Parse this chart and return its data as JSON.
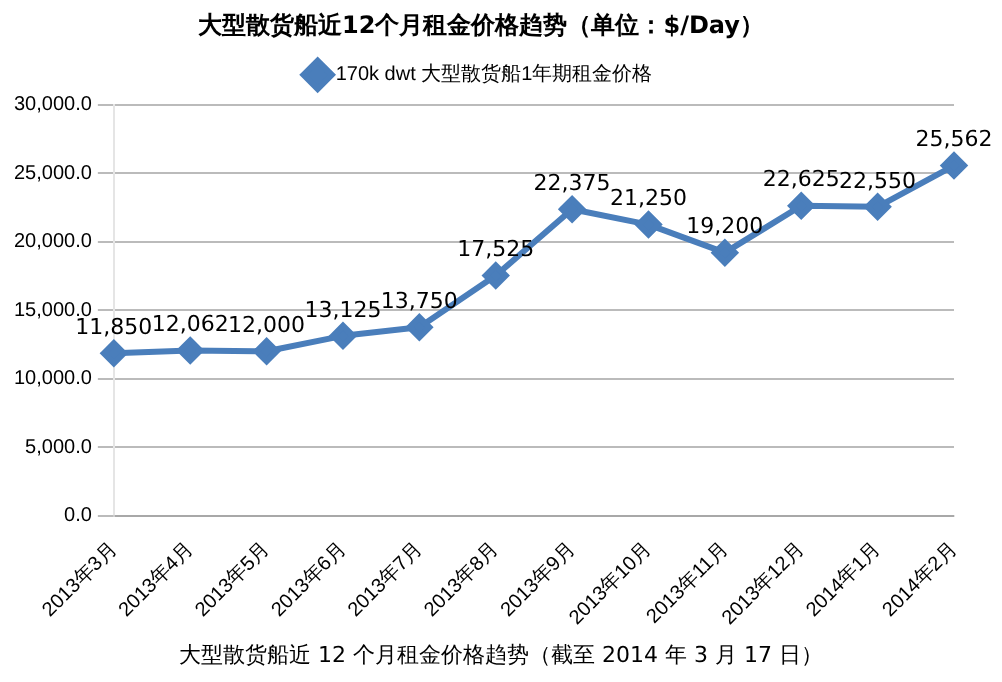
{
  "chart_data": {
    "type": "line",
    "title": "大型散货船近12个月租金价格趋势（单位：$/Day）",
    "categories": [
      "2013年3月",
      "2013年4月",
      "2013年5月",
      "2013年6月",
      "2013年7月",
      "2013年8月",
      "2013年9月",
      "2013年10月",
      "2013年11月",
      "2013年12月",
      "2014年1月",
      "2014年2月"
    ],
    "series": [
      {
        "name": "170k dwt 大型散货船1年期租金价格",
        "color": "#4a7ebb",
        "values": [
          11850,
          12062,
          12000,
          13125,
          13750,
          17525,
          22375,
          21250,
          19200,
          22625,
          22550,
          25562
        ],
        "value_labels": [
          "11,850",
          "12,062",
          "12,000",
          "13,125",
          "13,750",
          "17,525",
          "22,375",
          "21,250",
          "19,200",
          "22,625",
          "22,550",
          "25,562"
        ]
      }
    ],
    "ylim": [
      0,
      30000
    ],
    "yticks": [
      {
        "value": 0,
        "label": "0.0"
      },
      {
        "value": 5000,
        "label": "5,000.0"
      },
      {
        "value": 10000,
        "label": "10,000.0"
      },
      {
        "value": 15000,
        "label": "15,000.0"
      },
      {
        "value": 20000,
        "label": "20,000.0"
      },
      {
        "value": 25000,
        "label": "25,000.0"
      },
      {
        "value": 30000,
        "label": "30,000.0"
      }
    ],
    "grid": "y",
    "legend": "top",
    "marker": "diamond",
    "line_style": "solid",
    "annotations": [
      "大型散货船近 12 个月租金价格趋势（截至 2014 年 3 月 17 日）"
    ]
  }
}
